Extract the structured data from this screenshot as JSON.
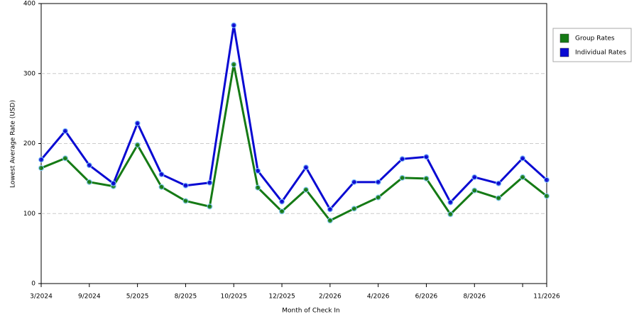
{
  "chart_data": {
    "type": "line",
    "x_label": "Month of Check In",
    "y_label": "Lowest Average Rate (USD)",
    "categories": [
      "3/2024",
      null,
      "9/2024",
      null,
      "5/2025",
      null,
      "8/2025",
      null,
      "10/2025",
      null,
      "12/2025",
      null,
      "2/2026",
      null,
      "4/2026",
      null,
      "6/2026",
      null,
      "8/2026",
      null,
      null,
      "11/2026"
    ],
    "series": [
      {
        "name": "Group Rates",
        "color": "#157a15",
        "values": [
          165,
          179,
          145,
          139,
          198,
          138,
          118,
          110,
          313,
          137,
          103,
          134,
          90,
          107,
          123,
          151,
          150,
          99,
          133,
          122,
          152,
          125
        ]
      },
      {
        "name": "Individual Rates",
        "color": "#0a0ad2",
        "values": [
          177,
          218,
          169,
          143,
          229,
          156,
          140,
          144,
          369,
          161,
          117,
          166,
          106,
          145,
          145,
          178,
          181,
          116,
          152,
          143,
          179,
          148
        ]
      }
    ],
    "ylim": [
      0,
      400
    ],
    "yticks": [
      0,
      100,
      200,
      300,
      400
    ],
    "grid": true,
    "legend": "right"
  }
}
